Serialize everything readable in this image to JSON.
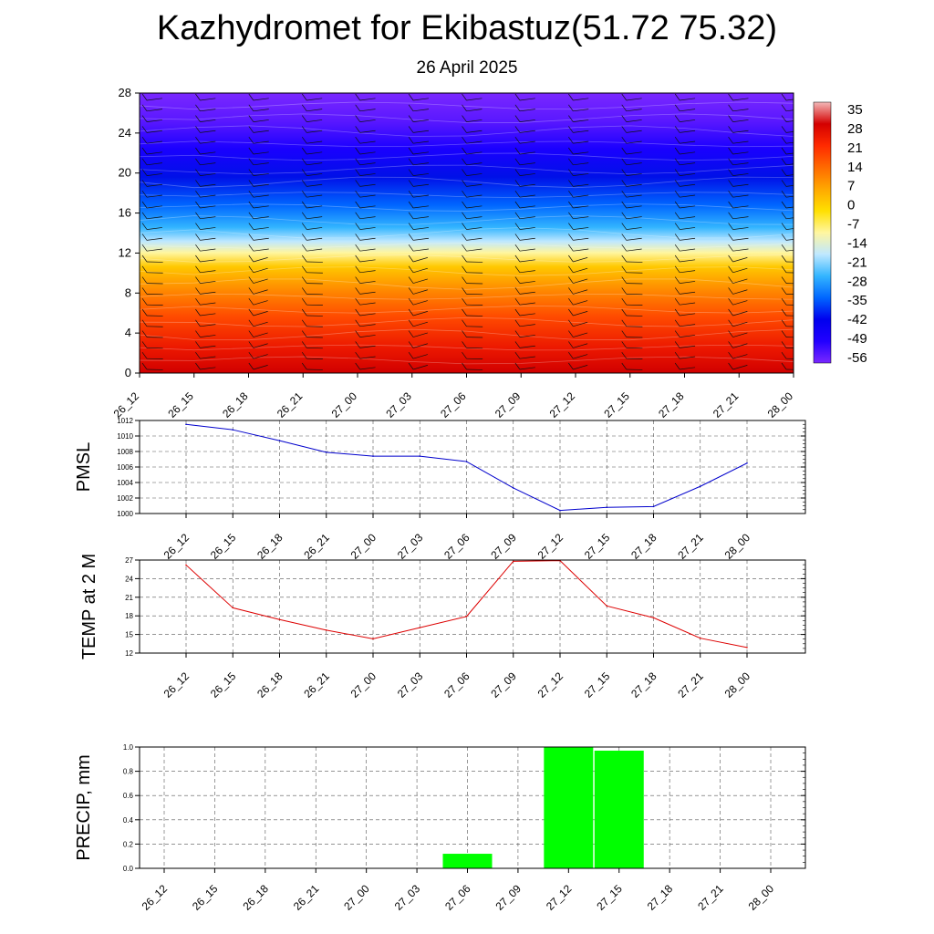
{
  "title": "Kazhydromet for Ekibastuz(51.72 75.32)",
  "subtitle": "26 April 2025",
  "colorbar": {
    "labels": [
      "35",
      "28",
      "21",
      "14",
      "7",
      "0",
      "-7",
      "-14",
      "-21",
      "-28",
      "-35",
      "-42",
      "-49",
      "-56"
    ],
    "stops": [
      "#f3b8b8",
      "#d40000",
      "#ff2a00",
      "#ff6a00",
      "#ffa800",
      "#ffe000",
      "#fff6a0",
      "#bfe8ff",
      "#33b5ff",
      "#0066ff",
      "#0000ee",
      "#2200ff",
      "#7a28ff"
    ]
  },
  "chart_data": [
    {
      "type": "heatmap",
      "name": "wind-temperature-cross-section",
      "xcategories": [
        "26_12",
        "26_15",
        "26_18",
        "26_21",
        "27_00",
        "27_03",
        "27_06",
        "27_09",
        "27_12",
        "27_15",
        "27_18",
        "27_21",
        "28_00"
      ],
      "yticks": [
        "0",
        "4",
        "8",
        "12",
        "16",
        "20",
        "24",
        "28"
      ],
      "ylim": [
        0,
        28
      ],
      "zlim": [
        -56,
        35
      ]
    },
    {
      "type": "line",
      "name": "pmsl",
      "ylabel": "PMSL",
      "color": "#0000cc",
      "categories": [
        "26_12",
        "26_15",
        "26_18",
        "26_21",
        "27_00",
        "27_03",
        "27_06",
        "27_09",
        "27_12",
        "27_15",
        "27_18",
        "27_21",
        "28_00"
      ],
      "values": [
        1011.5,
        1010.8,
        1009.4,
        1007.9,
        1007.4,
        1007.4,
        1006.7,
        1003.3,
        1000.4,
        1000.8,
        1000.9,
        1003.5,
        1006.5
      ],
      "ylim": [
        1000,
        1012
      ],
      "yticks": [
        "1000",
        "1002",
        "1004",
        "1006",
        "1008",
        "1010",
        "1012"
      ]
    },
    {
      "type": "line",
      "name": "temp-2m",
      "ylabel": "TEMP at 2 M",
      "color": "#dd0000",
      "categories": [
        "26_12",
        "26_15",
        "26_18",
        "26_21",
        "27_00",
        "27_03",
        "27_06",
        "27_09",
        "27_12",
        "27_15",
        "27_18",
        "27_21",
        "28_00"
      ],
      "values": [
        26.2,
        19.3,
        17.4,
        15.7,
        14.3,
        16.1,
        17.9,
        26.8,
        26.9,
        19.6,
        17.7,
        14.4,
        12.9
      ],
      "ylim": [
        12,
        27
      ],
      "yticks": [
        "12",
        "15",
        "18",
        "21",
        "24",
        "27"
      ]
    },
    {
      "type": "bar",
      "name": "precip",
      "ylabel": "PRECIP, mm",
      "color": "#00ff00",
      "categories": [
        "26_12",
        "26_15",
        "26_18",
        "26_21",
        "27_00",
        "27_03",
        "27_06",
        "27_09",
        "27_12",
        "27_15",
        "27_18",
        "27_21",
        "28_00"
      ],
      "values": [
        0,
        0,
        0,
        0,
        0,
        0,
        0.12,
        0,
        1.0,
        0.97,
        0,
        0,
        0
      ],
      "ylim": [
        0,
        1.0
      ],
      "yticks": [
        "0.0",
        "0.2",
        "0.4",
        "0.6",
        "0.8",
        "1.0"
      ]
    }
  ]
}
